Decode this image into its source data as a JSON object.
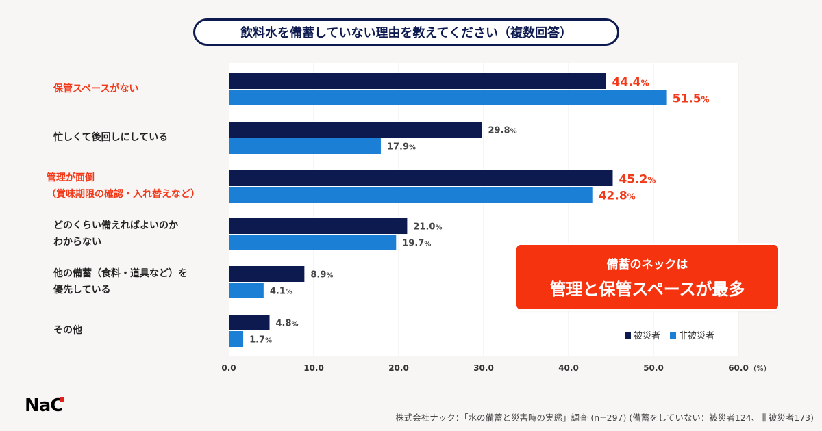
{
  "title": "飲料水を備蓄していない理由を教えてください（複数回答）",
  "chart_data": {
    "type": "bar",
    "orientation": "horizontal",
    "title": "飲料水を備蓄していない理由を教えてください（複数回答）",
    "categories": [
      {
        "lines": [
          "保管スペースがない"
        ],
        "highlight": true
      },
      {
        "lines": [
          "忙しくて後回しにしている"
        ],
        "highlight": false
      },
      {
        "lines": [
          "管理が面倒",
          "（賞味期限の確認・入れ替えなど）"
        ],
        "highlight": true
      },
      {
        "lines": [
          "どのくらい備えればよいのか",
          "わからない"
        ],
        "highlight": false
      },
      {
        "lines": [
          "他の備蓄（食料・道具など）を",
          "優先している"
        ],
        "highlight": false
      },
      {
        "lines": [
          "その他"
        ],
        "highlight": false
      }
    ],
    "series": [
      {
        "name": "被災者",
        "color": "#0d1a4f",
        "values": [
          44.4,
          29.8,
          45.2,
          21.0,
          8.9,
          4.8
        ]
      },
      {
        "name": "非被災者",
        "color": "#1b7fd6",
        "values": [
          51.5,
          17.9,
          42.8,
          19.7,
          4.1,
          1.7
        ]
      }
    ],
    "highlight_color": "#f2391a",
    "xlim": [
      0,
      60
    ],
    "xticks": [
      "0.0",
      "10.0",
      "20.0",
      "30.0",
      "40.0",
      "50.0",
      "60.0"
    ],
    "xunit": "(%)",
    "value_suffix": "%",
    "grid": true,
    "legend": "bottom-right"
  },
  "callout": {
    "line1": "備蓄のネックは",
    "line2": "管理と保管スペースが最多"
  },
  "logo": "NaC",
  "source": "株式会社ナック：「水の備蓄と災害時の実態」調査 (n=297) (備蓄をしていない：被災者124、非被災者173)"
}
